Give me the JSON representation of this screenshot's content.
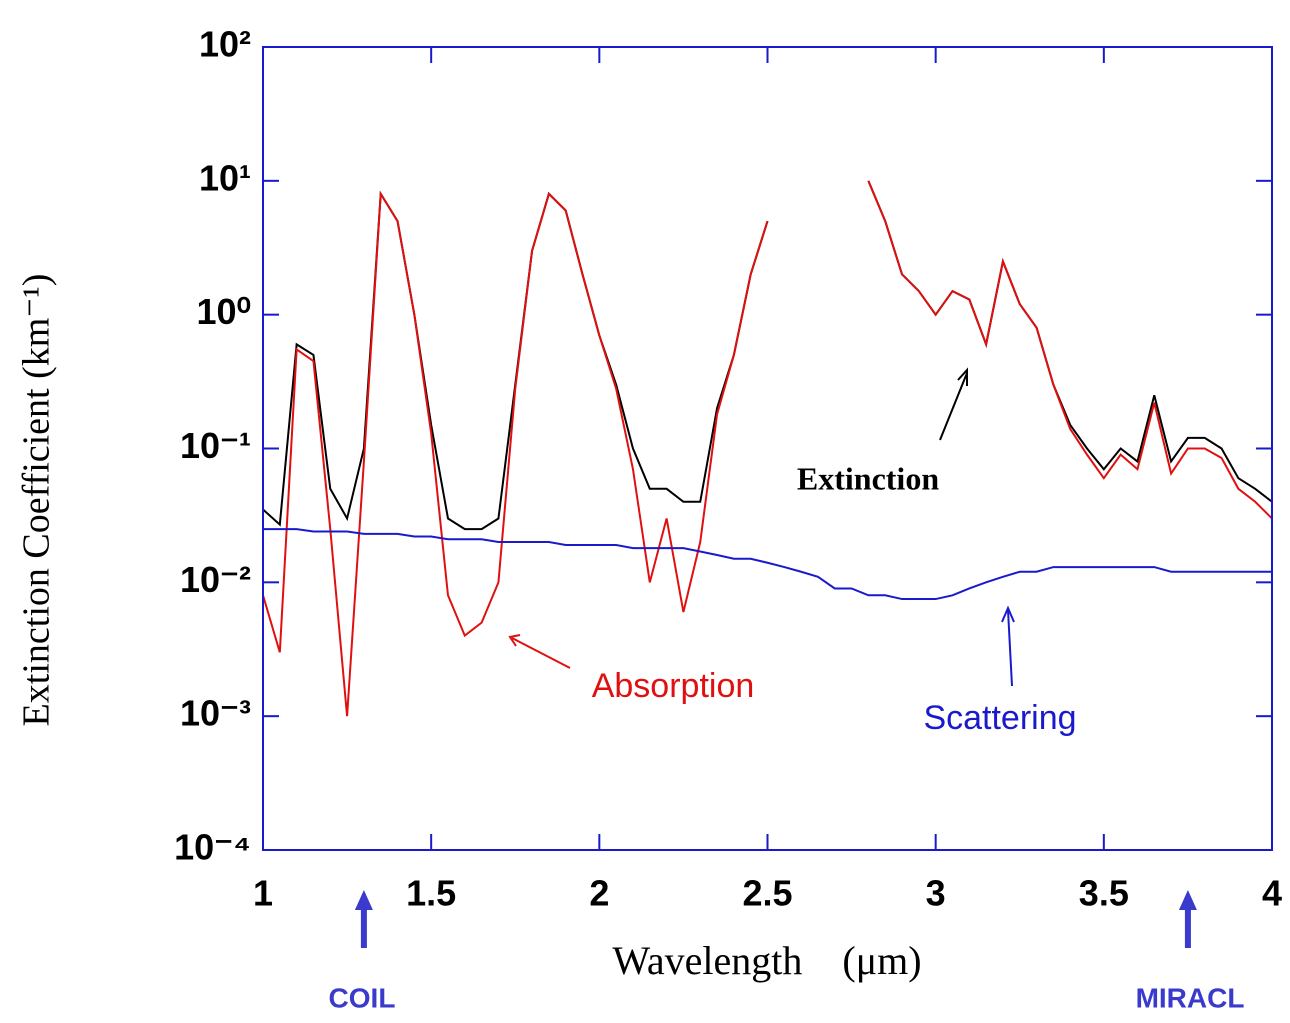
{
  "chart_data": {
    "type": "line",
    "xlabel": "Wavelength    (μm)",
    "ylabel": "Extinction Coefficient (km⁻¹)",
    "x": [
      1.0,
      1.05,
      1.1,
      1.15,
      1.2,
      1.25,
      1.3,
      1.35,
      1.4,
      1.45,
      1.5,
      1.55,
      1.6,
      1.65,
      1.7,
      1.75,
      1.8,
      1.85,
      1.9,
      1.95,
      2.0,
      2.05,
      2.1,
      2.15,
      2.2,
      2.25,
      2.3,
      2.35,
      2.4,
      2.45,
      2.5,
      2.55,
      2.6,
      2.65,
      2.7,
      2.75,
      2.8,
      2.85,
      2.9,
      2.95,
      3.0,
      3.05,
      3.1,
      3.15,
      3.2,
      3.25,
      3.3,
      3.35,
      3.4,
      3.45,
      3.5,
      3.55,
      3.6,
      3.65,
      3.7,
      3.75,
      3.8,
      3.85,
      3.9,
      3.95,
      4.0
    ],
    "series": [
      {
        "name": "Extinction",
        "color": "#000000",
        "values": [
          0.035,
          0.027,
          0.6,
          0.5,
          0.05,
          0.03,
          0.1,
          8,
          5,
          1.0,
          0.15,
          0.03,
          0.025,
          0.025,
          0.03,
          0.3,
          3,
          8,
          6,
          2,
          0.7,
          0.3,
          0.1,
          0.05,
          0.05,
          0.04,
          0.04,
          0.2,
          0.5,
          2,
          5,
          null,
          null,
          null,
          null,
          null,
          10,
          5,
          2,
          1.5,
          1.0,
          1.5,
          1.3,
          0.6,
          2.5,
          1.2,
          0.8,
          0.3,
          0.15,
          0.1,
          0.07,
          0.1,
          0.08,
          0.25,
          0.08,
          0.12,
          0.12,
          0.1,
          0.06,
          0.05,
          0.04
        ]
      },
      {
        "name": "Absorption",
        "color": "#e01010",
        "values": [
          0.008,
          0.003,
          0.55,
          0.45,
          0.025,
          0.001,
          0.08,
          8,
          5,
          1.0,
          0.13,
          0.008,
          0.004,
          0.005,
          0.01,
          0.28,
          3,
          8,
          6,
          2,
          0.7,
          0.28,
          0.07,
          0.01,
          0.03,
          0.006,
          0.02,
          0.18,
          0.5,
          2,
          5,
          null,
          null,
          null,
          null,
          null,
          10,
          5,
          2,
          1.5,
          1.0,
          1.5,
          1.3,
          0.6,
          2.5,
          1.2,
          0.8,
          0.3,
          0.14,
          0.09,
          0.06,
          0.09,
          0.07,
          0.22,
          0.065,
          0.1,
          0.1,
          0.085,
          0.05,
          0.04,
          0.03
        ]
      },
      {
        "name": "Scattering",
        "color": "#1a1acc",
        "values": [
          0.025,
          0.025,
          0.025,
          0.024,
          0.024,
          0.024,
          0.023,
          0.023,
          0.023,
          0.022,
          0.022,
          0.021,
          0.021,
          0.021,
          0.02,
          0.02,
          0.02,
          0.02,
          0.019,
          0.019,
          0.019,
          0.019,
          0.018,
          0.018,
          0.018,
          0.018,
          0.017,
          0.016,
          0.015,
          0.015,
          0.014,
          0.013,
          0.012,
          0.011,
          0.009,
          0.009,
          0.008,
          0.008,
          0.0075,
          0.0075,
          0.0075,
          0.008,
          0.009,
          0.01,
          0.011,
          0.012,
          0.012,
          0.013,
          0.013,
          0.013,
          0.013,
          0.013,
          0.013,
          0.013,
          0.012,
          0.012,
          0.012,
          0.012,
          0.012,
          0.012,
          0.012
        ]
      }
    ],
    "annotations": [
      {
        "text": "COIL",
        "x": 1.3
      },
      {
        "text": "MIRACL",
        "x": 3.75
      }
    ],
    "xlim": [
      1,
      4
    ],
    "xticks": [
      1,
      1.5,
      2,
      2.5,
      3,
      3.5,
      4
    ],
    "ylim": [
      0.0001,
      100
    ],
    "ylog": true,
    "yticks": [
      {
        "value": 0.0001,
        "label": "10⁻⁴"
      },
      {
        "value": 0.001,
        "label": "10⁻³"
      },
      {
        "value": 0.01,
        "label": "10⁻²"
      },
      {
        "value": 0.1,
        "label": "10⁻¹"
      },
      {
        "value": 1,
        "label": "10⁰"
      },
      {
        "value": 10,
        "label": "10¹"
      },
      {
        "value": 100,
        "label": "10²"
      }
    ],
    "axis_color": "#1a1acc",
    "annotation_color": "#3a3acc"
  }
}
